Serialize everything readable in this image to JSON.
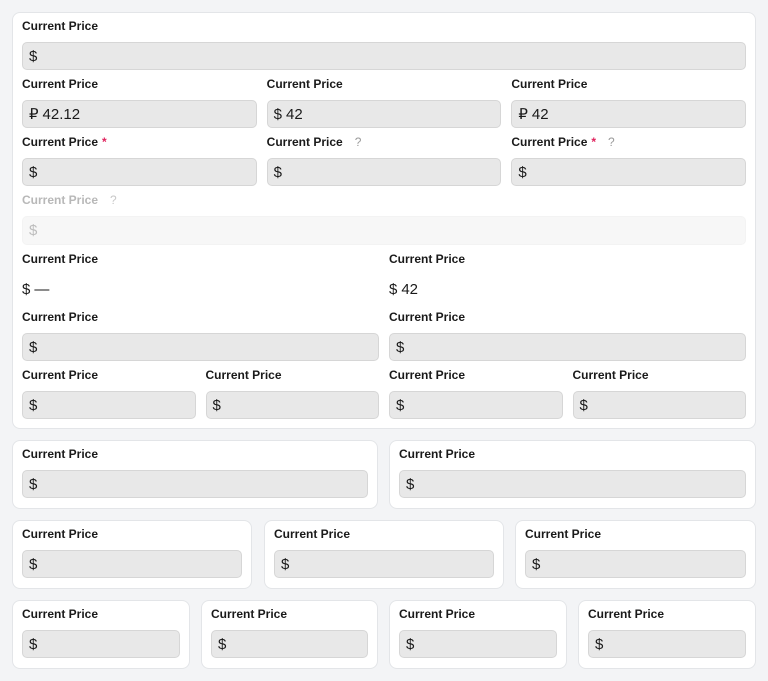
{
  "sections": [
    {
      "rows": [
        {
          "fields": [
            {
              "label": "Current Price",
              "prefix": "$",
              "value": ""
            }
          ]
        },
        {
          "fields": [
            {
              "label": "Current Price",
              "prefix": "₽",
              "value": "42.12"
            },
            {
              "label": "Current Price",
              "prefix": "$",
              "value": "42"
            },
            {
              "label": "Current Price",
              "prefix": "₽",
              "value": "42"
            }
          ]
        },
        {
          "fields": [
            {
              "label": "Current Price",
              "prefix": "$",
              "value": "",
              "required": "*"
            },
            {
              "label": "Current Price",
              "prefix": "$",
              "value": "",
              "help": "?"
            },
            {
              "label": "Current Price",
              "prefix": "$",
              "value": "",
              "required": "*",
              "help": "?"
            }
          ]
        },
        {
          "fields": [
            {
              "label": "Current Price",
              "prefix": "$",
              "value": "",
              "help": "?",
              "disabled": true
            }
          ]
        },
        {
          "fields": [
            {
              "label": "Current Price",
              "prefix": "$",
              "value": "—",
              "readonly": true
            },
            {
              "label": "Current Price",
              "prefix": "$",
              "value": "42",
              "readonly": true
            }
          ]
        },
        {
          "fields": [
            {
              "label": "Current Price",
              "prefix": "$",
              "value": ""
            },
            {
              "label": "Current Price",
              "prefix": "$",
              "value": ""
            }
          ]
        },
        {
          "fields": [
            {
              "label": "Current Price",
              "prefix": "$",
              "value": ""
            },
            {
              "label": "Current Price",
              "prefix": "$",
              "value": ""
            },
            {
              "label": "Current Price",
              "prefix": "$",
              "value": ""
            },
            {
              "label": "Current Price",
              "prefix": "$",
              "value": ""
            }
          ]
        }
      ]
    },
    {
      "rows": [
        {
          "fields": [
            {
              "label": "Current Price",
              "prefix": "$",
              "value": ""
            }
          ]
        }
      ]
    },
    {
      "rows": [
        {
          "fields": [
            {
              "label": "Current Price",
              "prefix": "$",
              "value": ""
            }
          ]
        }
      ]
    },
    {
      "rows": [
        {
          "fields": [
            {
              "label": "Current Price",
              "prefix": "$",
              "value": ""
            }
          ]
        }
      ]
    },
    {
      "rows": [
        {
          "fields": [
            {
              "label": "Current Price",
              "prefix": "$",
              "value": ""
            }
          ]
        }
      ]
    },
    {
      "rows": [
        {
          "fields": [
            {
              "label": "Current Price",
              "prefix": "$",
              "value": ""
            }
          ]
        }
      ]
    },
    {
      "rows": [
        {
          "fields": [
            {
              "label": "Current Price",
              "prefix": "$",
              "value": ""
            }
          ]
        }
      ]
    },
    {
      "rows": [
        {
          "fields": [
            {
              "label": "Current Price",
              "prefix": "$",
              "value": ""
            }
          ]
        }
      ]
    },
    {
      "rows": [
        {
          "fields": [
            {
              "label": "Current Price",
              "prefix": "$",
              "value": ""
            }
          ]
        }
      ]
    },
    {
      "rows": [
        {
          "fields": [
            {
              "label": "Current Price",
              "prefix": "$",
              "value": ""
            }
          ]
        }
      ]
    }
  ],
  "colors": {
    "required": "#e0245e",
    "input_bg": "#e8e8e8",
    "page_bg": "#f3f4f6"
  }
}
